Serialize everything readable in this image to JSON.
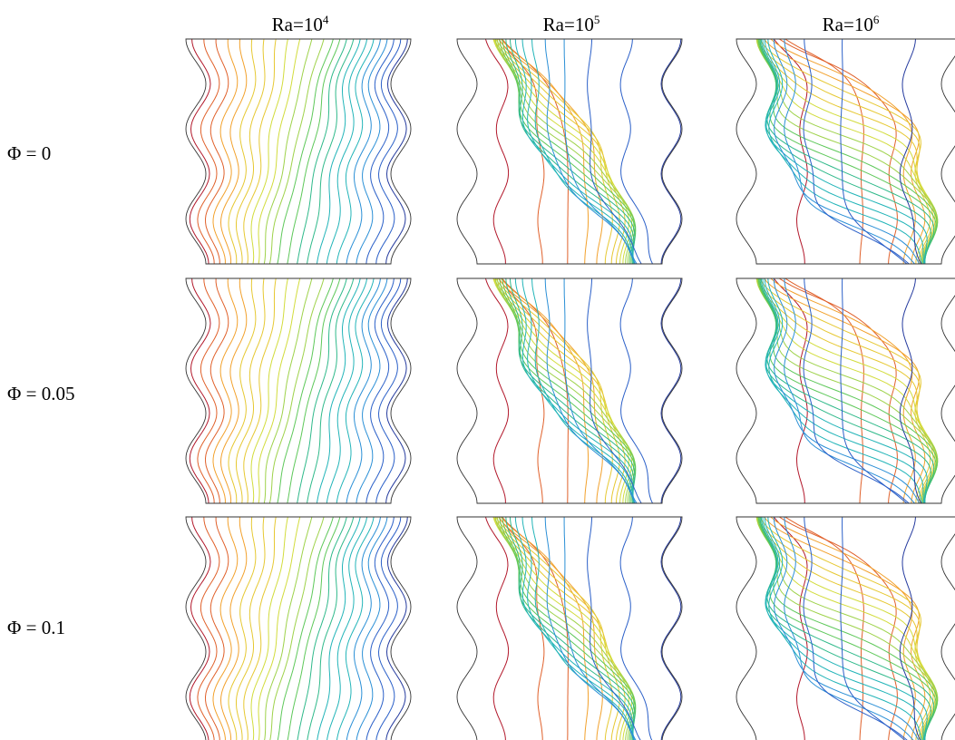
{
  "columns": [
    {
      "prefix": "Ra=10",
      "exponent": "4"
    },
    {
      "prefix": "Ra=10",
      "exponent": "5"
    },
    {
      "prefix": "Ra=10",
      "exponent": "6"
    }
  ],
  "rows": [
    {
      "label": "Φ = 0"
    },
    {
      "label": "Φ = 0.05"
    },
    {
      "label": "Φ = 0.1"
    }
  ],
  "palette": [
    "#b2182b",
    "#e0602a",
    "#f2a12c",
    "#e6c832",
    "#d2dc3c",
    "#9ed24a",
    "#5ec85a",
    "#2fb98a",
    "#22b4b8",
    "#2a8fd6",
    "#2a5fc8",
    "#243a9e"
  ],
  "wall_color": "#333333",
  "panels": [
    {
      "column": 0,
      "row": 0,
      "ra_exponent": 4,
      "phi": 0
    },
    {
      "column": 1,
      "row": 0,
      "ra_exponent": 5,
      "phi": 0
    },
    {
      "column": 2,
      "row": 0,
      "ra_exponent": 6,
      "phi": 0
    },
    {
      "column": 0,
      "row": 1,
      "ra_exponent": 4,
      "phi": 0.05
    },
    {
      "column": 1,
      "row": 1,
      "ra_exponent": 5,
      "phi": 0.05
    },
    {
      "column": 2,
      "row": 1,
      "ra_exponent": 6,
      "phi": 0.05
    },
    {
      "column": 0,
      "row": 2,
      "ra_exponent": 4,
      "phi": 0.1
    },
    {
      "column": 1,
      "row": 2,
      "ra_exponent": 5,
      "phi": 0.1
    },
    {
      "column": 2,
      "row": 2,
      "ra_exponent": 6,
      "phi": 0.1
    }
  ]
}
